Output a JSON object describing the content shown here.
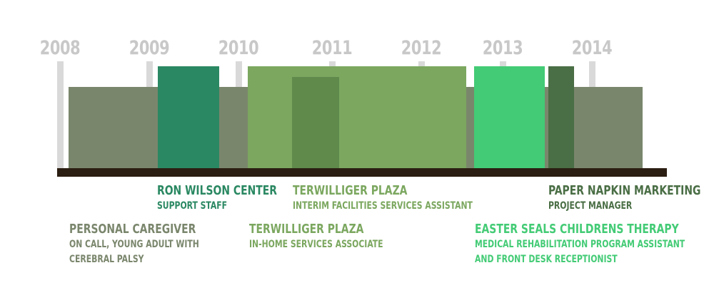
{
  "years": [
    "2008",
    "2009",
    "2010",
    "2011",
    "2012",
    "2013",
    "2014"
  ],
  "colors": {
    "caregiver": "#7a866c",
    "ron_wilson": "#2a8862",
    "terwilliger_facilities": "#7ba75f",
    "terwilliger_inhome": "#5f8a4c",
    "easter_seals": "#43cb75",
    "paper_napkin": "#4a6e45",
    "baseline": "#2b1e12",
    "year_text": "#c8c8c8"
  },
  "jobs": [
    {
      "title": "PERSONAL CAREGIVER",
      "role_lines": [
        "ON CALL, YOUNG ADULT WITH",
        "CEREBRAL PALSY"
      ]
    },
    {
      "title": "RON WILSON CENTER",
      "role_lines": [
        "SUPPORT STAFF"
      ]
    },
    {
      "title": "TERWILLIGER PLAZA",
      "role_lines": [
        "INTERIM FACILITIES SERVICES ASSISTANT"
      ]
    },
    {
      "title": "TERWILLIGER PLAZA",
      "role_lines": [
        "IN-HOME SERVICES ASSOCIATE"
      ]
    },
    {
      "title": "EASTER SEALS CHILDRENS THERAPY",
      "role_lines": [
        "MEDICAL REHABILITATION PROGRAM ASSISTANT",
        "AND FRONT DESK RECEPTIONIST"
      ]
    },
    {
      "title": "PAPER NAPKIN MARKETING",
      "role_lines": [
        "PROJECT MANAGER"
      ]
    }
  ]
}
